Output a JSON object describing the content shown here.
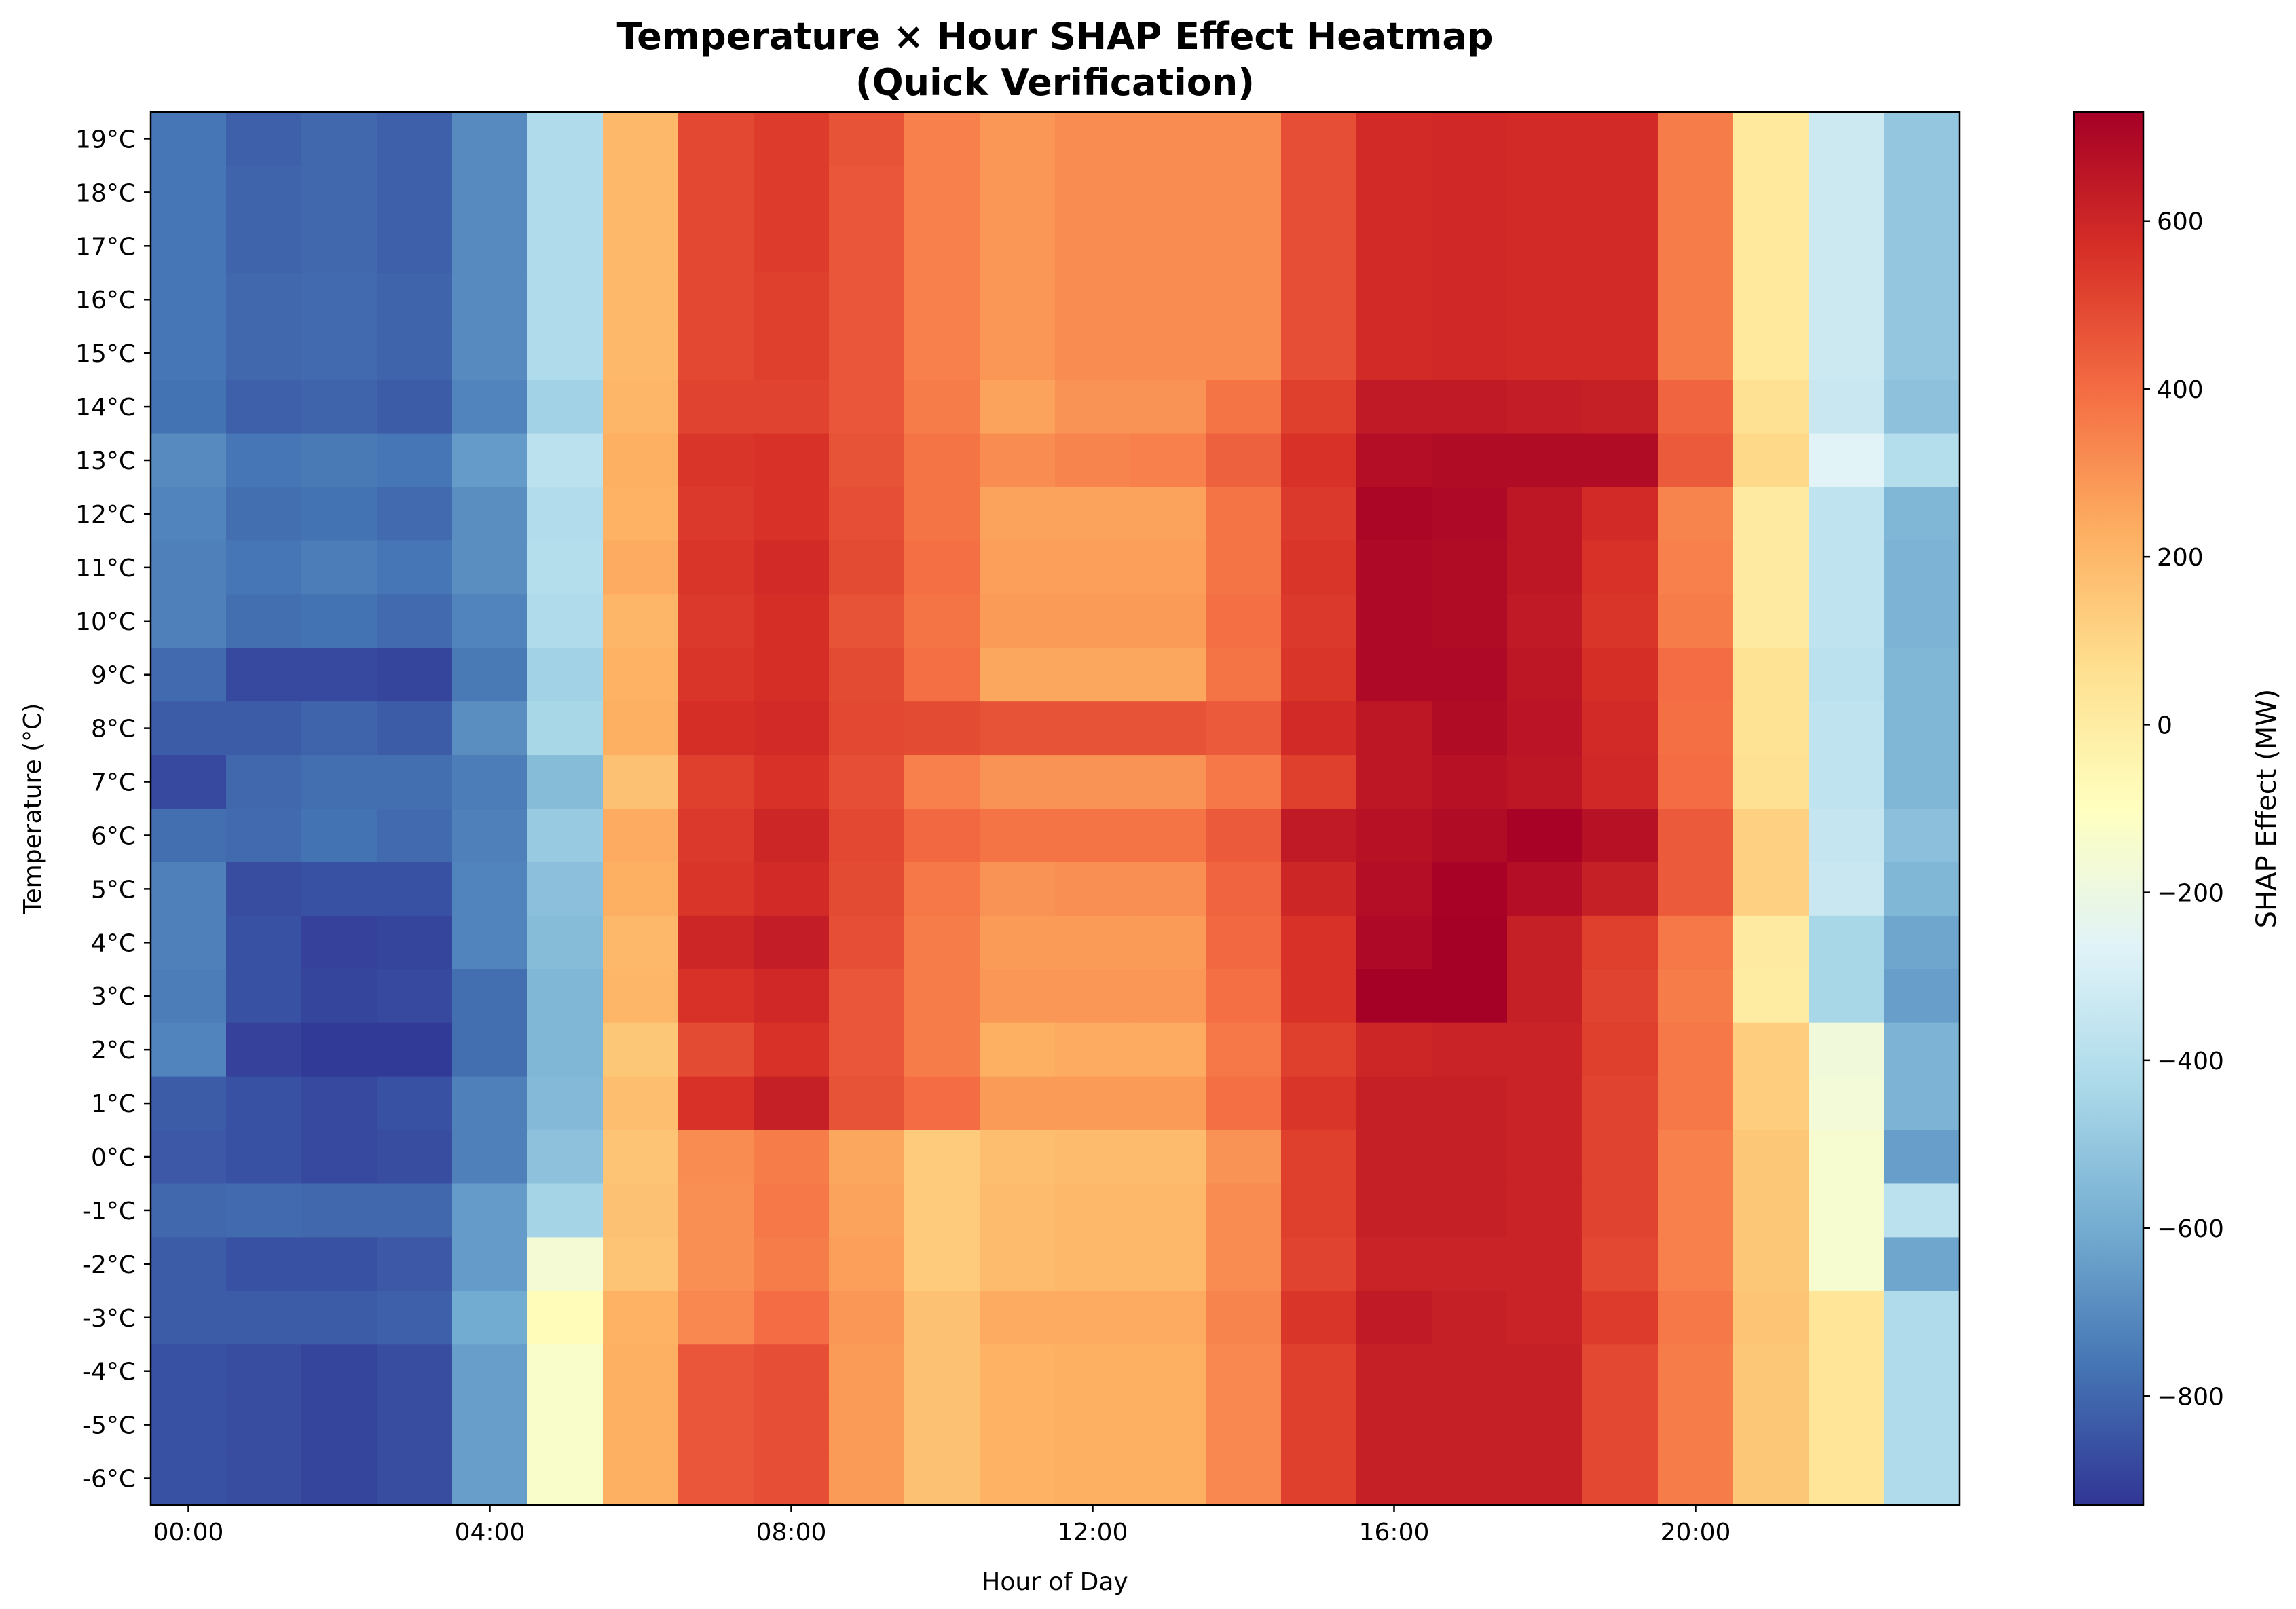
{
  "chart_data": {
    "type": "heatmap",
    "title": "Temperature × Hour SHAP Effect Heatmap",
    "subtitle": "(Quick Verification)",
    "xlabel": "Hour of Day",
    "ylabel": "Temperature (°C)",
    "colorbar_label": "SHAP Effect (MW)",
    "colormap": "RdYlBu_r",
    "clim": [
      -930,
      730
    ],
    "colorbar_ticks": [
      "−800",
      "−600",
      "−400",
      "−200",
      "0",
      "200",
      "400",
      "600"
    ],
    "x_tick_labels": [
      "00:00",
      "04:00",
      "08:00",
      "12:00",
      "16:00",
      "20:00"
    ],
    "x_tick_hours": [
      0,
      4,
      8,
      12,
      16,
      20
    ],
    "hours": [
      0,
      1,
      2,
      3,
      4,
      5,
      6,
      7,
      8,
      9,
      10,
      11,
      12,
      13,
      14,
      15,
      16,
      17,
      18,
      19,
      20,
      21,
      22,
      23
    ],
    "y_tick_labels": [
      "19°C",
      "18°C",
      "17°C",
      "16°C",
      "15°C",
      "14°C",
      "13°C",
      "12°C",
      "11°C",
      "10°C",
      "9°C",
      "8°C",
      "7°C",
      "6°C",
      "5°C",
      "4°C",
      "3°C",
      "2°C",
      "1°C",
      "0°C",
      "-1°C",
      "-2°C",
      "-3°C",
      "-4°C",
      "-5°C",
      "-6°C"
    ],
    "values": [
      [
        -760,
        -820,
        -800,
        -820,
        -700,
        -420,
        200,
        500,
        530,
        470,
        350,
        290,
        320,
        320,
        320,
        480,
        580,
        590,
        580,
        580,
        360,
        20,
        -330,
        -500
      ],
      [
        -760,
        -810,
        -800,
        -820,
        -700,
        -420,
        200,
        500,
        530,
        460,
        350,
        290,
        320,
        320,
        320,
        480,
        580,
        590,
        580,
        580,
        360,
        20,
        -330,
        -500
      ],
      [
        -760,
        -810,
        -800,
        -820,
        -700,
        -420,
        200,
        500,
        530,
        460,
        350,
        290,
        320,
        320,
        320,
        480,
        580,
        590,
        580,
        580,
        360,
        20,
        -330,
        -500
      ],
      [
        -760,
        -800,
        -790,
        -810,
        -700,
        -420,
        200,
        500,
        520,
        460,
        350,
        290,
        320,
        320,
        320,
        480,
        580,
        590,
        580,
        580,
        360,
        20,
        -330,
        -500
      ],
      [
        -760,
        -800,
        -790,
        -810,
        -700,
        -420,
        200,
        500,
        520,
        460,
        350,
        290,
        320,
        320,
        320,
        480,
        580,
        590,
        580,
        580,
        360,
        20,
        -330,
        -500
      ],
      [
        -770,
        -820,
        -810,
        -830,
        -720,
        -460,
        210,
        510,
        510,
        460,
        360,
        260,
        300,
        300,
        380,
        520,
        640,
        640,
        630,
        620,
        420,
        60,
        -340,
        -520
      ],
      [
        -700,
        -760,
        -750,
        -760,
        -650,
        -380,
        230,
        550,
        560,
        470,
        380,
        320,
        340,
        350,
        430,
        560,
        680,
        690,
        690,
        690,
        450,
        90,
        -260,
        -400
      ],
      [
        -720,
        -780,
        -770,
        -790,
        -690,
        -410,
        220,
        540,
        560,
        480,
        380,
        260,
        260,
        260,
        380,
        540,
        710,
        700,
        650,
        580,
        340,
        10,
        -370,
        -560
      ],
      [
        -730,
        -760,
        -740,
        -760,
        -690,
        -400,
        240,
        550,
        580,
        490,
        390,
        270,
        270,
        270,
        380,
        550,
        700,
        690,
        650,
        560,
        350,
        10,
        -370,
        -570
      ],
      [
        -730,
        -780,
        -770,
        -790,
        -720,
        -420,
        210,
        540,
        570,
        470,
        380,
        280,
        280,
        280,
        390,
        540,
        700,
        690,
        640,
        550,
        360,
        10,
        -370,
        -570
      ],
      [
        -790,
        -880,
        -880,
        -890,
        -750,
        -460,
        220,
        550,
        570,
        490,
        390,
        250,
        250,
        250,
        380,
        550,
        700,
        700,
        650,
        570,
        400,
        50,
        -380,
        -560
      ],
      [
        -830,
        -830,
        -810,
        -830,
        -690,
        -440,
        230,
        570,
        580,
        500,
        490,
        470,
        470,
        470,
        450,
        580,
        650,
        690,
        660,
        580,
        390,
        50,
        -370,
        -560
      ],
      [
        -880,
        -800,
        -780,
        -780,
        -740,
        -540,
        170,
        520,
        560,
        480,
        350,
        300,
        300,
        300,
        370,
        520,
        650,
        670,
        650,
        590,
        400,
        60,
        -370,
        -560
      ],
      [
        -780,
        -790,
        -770,
        -790,
        -730,
        -490,
        240,
        540,
        600,
        500,
        410,
        380,
        380,
        380,
        450,
        640,
        670,
        690,
        720,
        670,
        450,
        120,
        -350,
        -530
      ],
      [
        -730,
        -870,
        -860,
        -860,
        -720,
        -530,
        230,
        550,
        580,
        490,
        370,
        300,
        310,
        310,
        420,
        600,
        680,
        720,
        680,
        620,
        450,
        120,
        -340,
        -560
      ],
      [
        -730,
        -860,
        -900,
        -890,
        -720,
        -540,
        200,
        600,
        630,
        480,
        360,
        280,
        280,
        280,
        410,
        560,
        700,
        730,
        620,
        520,
        370,
        10,
        -440,
        -620
      ],
      [
        -740,
        -860,
        -890,
        -880,
        -780,
        -560,
        210,
        560,
        590,
        460,
        360,
        290,
        290,
        290,
        390,
        560,
        730,
        730,
        620,
        510,
        360,
        0,
        -440,
        -640
      ],
      [
        -720,
        -900,
        -920,
        -920,
        -780,
        -560,
        150,
        490,
        560,
        460,
        360,
        230,
        240,
        240,
        370,
        520,
        600,
        610,
        610,
        520,
        370,
        130,
        -180,
        -570
      ],
      [
        -830,
        -860,
        -880,
        -860,
        -730,
        -550,
        180,
        560,
        620,
        470,
        400,
        280,
        280,
        280,
        390,
        550,
        620,
        620,
        610,
        510,
        370,
        130,
        -170,
        -570
      ],
      [
        -840,
        -860,
        -880,
        -870,
        -730,
        -520,
        160,
        320,
        360,
        250,
        140,
        180,
        190,
        190,
        300,
        520,
        620,
        620,
        610,
        510,
        350,
        150,
        -150,
        -640
      ],
      [
        -800,
        -790,
        -800,
        -800,
        -650,
        -450,
        170,
        310,
        370,
        260,
        140,
        190,
        200,
        200,
        320,
        520,
        620,
        620,
        610,
        510,
        350,
        150,
        -150,
        -380
      ],
      [
        -830,
        -860,
        -860,
        -840,
        -650,
        -160,
        160,
        310,
        360,
        270,
        140,
        190,
        200,
        200,
        320,
        510,
        610,
        610,
        610,
        500,
        350,
        150,
        -150,
        -620
      ],
      [
        -830,
        -830,
        -830,
        -820,
        -600,
        -80,
        220,
        330,
        400,
        290,
        170,
        240,
        240,
        240,
        340,
        550,
        640,
        620,
        610,
        530,
        370,
        160,
        40,
        -420
      ],
      [
        -860,
        -870,
        -890,
        -870,
        -640,
        -130,
        230,
        460,
        480,
        280,
        170,
        220,
        230,
        230,
        330,
        520,
        620,
        620,
        620,
        500,
        360,
        150,
        40,
        -420
      ],
      [
        -860,
        -870,
        -890,
        -870,
        -640,
        -130,
        230,
        460,
        480,
        280,
        170,
        220,
        230,
        230,
        330,
        520,
        620,
        620,
        620,
        500,
        360,
        150,
        40,
        -420
      ],
      [
        -860,
        -870,
        -890,
        -870,
        -640,
        -130,
        230,
        460,
        480,
        280,
        170,
        220,
        230,
        230,
        330,
        520,
        620,
        620,
        620,
        500,
        360,
        150,
        40,
        -420
      ]
    ]
  }
}
